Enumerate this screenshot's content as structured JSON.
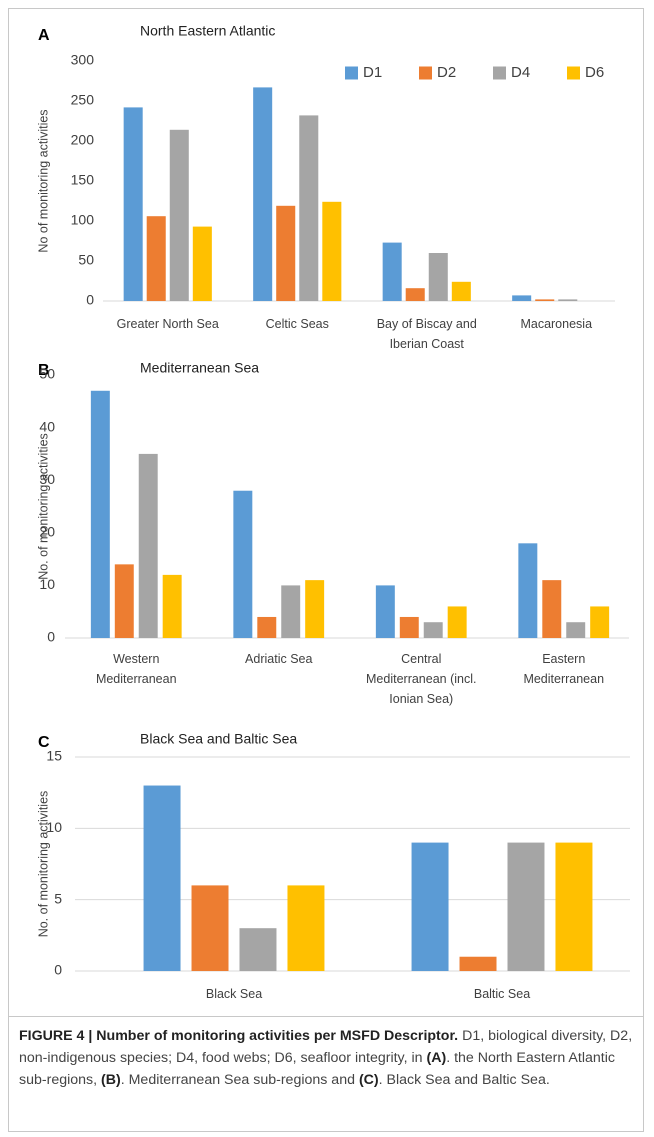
{
  "chart_data": [
    {
      "type": "bar",
      "panel": "A",
      "title": "North Eastern Atlantic",
      "y_label": "No of monitoring activities",
      "categories": [
        "Greater North Sea",
        "Celtic Seas",
        "Bay of Biscay and Iberian Coast",
        "Macaronesia"
      ],
      "series": [
        {
          "name": "D1",
          "color": "#5b9bd5",
          "values": [
            242,
            267,
            73,
            7
          ]
        },
        {
          "name": "D2",
          "color": "#ed7d31",
          "values": [
            106,
            119,
            16,
            2
          ]
        },
        {
          "name": "D4",
          "color": "#a5a5a5",
          "values": [
            214,
            232,
            60,
            2
          ]
        },
        {
          "name": "D6",
          "color": "#ffc000",
          "values": [
            93,
            124,
            24,
            0
          ]
        }
      ],
      "ylim": [
        0,
        300
      ],
      "yticks": [
        0,
        50,
        100,
        150,
        200,
        250,
        300
      ],
      "grid": false,
      "legend": "top-right"
    },
    {
      "type": "bar",
      "panel": "B",
      "title": "Mediterranean Sea",
      "y_label": "No. of monitoring activities",
      "categories": [
        "Western Mediterranean",
        "Adriatic Sea",
        "Central Mediterranean (incl. Ionian Sea)",
        "Eastern Mediterranean"
      ],
      "series": [
        {
          "name": "D1",
          "color": "#5b9bd5",
          "values": [
            47,
            28,
            10,
            18
          ]
        },
        {
          "name": "D2",
          "color": "#ed7d31",
          "values": [
            14,
            4,
            4,
            11
          ]
        },
        {
          "name": "D4",
          "color": "#a5a5a5",
          "values": [
            35,
            10,
            3,
            3
          ]
        },
        {
          "name": "D6",
          "color": "#ffc000",
          "values": [
            12,
            11,
            6,
            6
          ]
        }
      ],
      "ylim": [
        0,
        50
      ],
      "yticks": [
        0,
        10,
        20,
        30,
        40,
        50
      ],
      "grid": false
    },
    {
      "type": "bar",
      "panel": "C",
      "title": "Black Sea and Baltic Sea",
      "y_label": "No. of monitoring activities",
      "categories": [
        "Black Sea",
        "Baltic Sea"
      ],
      "series": [
        {
          "name": "D1",
          "color": "#5b9bd5",
          "values": [
            13,
            9
          ]
        },
        {
          "name": "D2",
          "color": "#ed7d31",
          "values": [
            6,
            1
          ]
        },
        {
          "name": "D4",
          "color": "#a5a5a5",
          "values": [
            3,
            9
          ]
        },
        {
          "name": "D6",
          "color": "#ffc000",
          "values": [
            6,
            9
          ]
        }
      ],
      "ylim": [
        0,
        15
      ],
      "yticks": [
        0,
        5,
        10,
        15
      ],
      "grid": true
    }
  ],
  "caption": {
    "title": "FIGURE 4 | Number of monitoring activities per MSFD Descriptor.",
    "segments": [
      "D1, biological diversity, D2, non-indigenous species; D4, food webs; D6, seafloor integrity, in",
      "(A)",
      ". the North Eastern Atlantic sub-regions,",
      "(B)",
      ". Mediterranean Sea sub-regions and",
      "(C)",
      ". Black Sea and Baltic Sea."
    ]
  }
}
